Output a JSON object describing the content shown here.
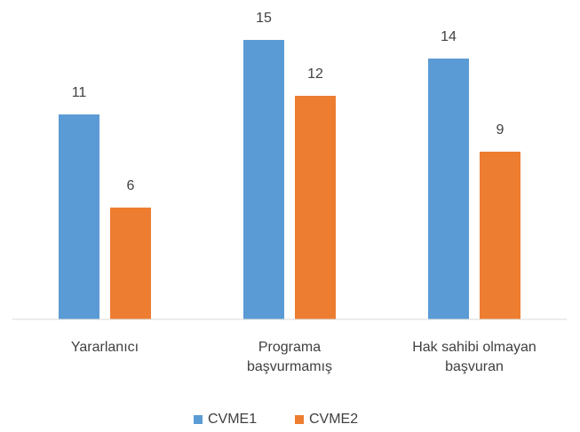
{
  "chart_data": {
    "type": "bar",
    "categories": [
      "Yararlanıcı",
      "Programa\nbaşvurmamış",
      "Hak sahibi olmayan\nbaşvuran"
    ],
    "series": [
      {
        "name": "CVME1",
        "color": "#5b9bd5",
        "values": [
          11,
          15,
          14
        ]
      },
      {
        "name": "CVME2",
        "color": "#ed7d31",
        "values": [
          6,
          12,
          9
        ]
      }
    ],
    "ylim": [
      0,
      16
    ],
    "legend": "bottom"
  }
}
